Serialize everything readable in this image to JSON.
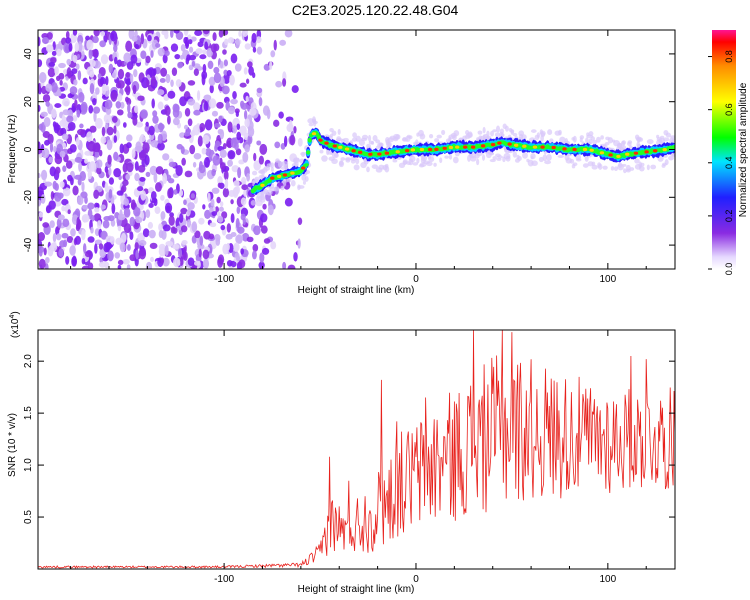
{
  "title": "C2E3.2025.120.22.48.G04",
  "chart_data": [
    {
      "type": "heatmap",
      "name": "spectrogram",
      "xlabel": "Height of straight line (km)",
      "ylabel": "Frequency (Hz)",
      "xlim": [
        -197,
        135
      ],
      "ylim": [
        -50,
        50
      ],
      "xticks": [
        -100,
        0,
        100
      ],
      "yticks": [
        -40,
        -20,
        0,
        20,
        40
      ],
      "colorbar": {
        "label": "Normalized spectral amplitude",
        "range": [
          0,
          0.9
        ],
        "ticks": [
          0.0,
          0.2,
          0.4,
          0.6,
          0.8
        ]
      },
      "noise_region": {
        "x_from": -197,
        "x_to": -60,
        "y_from": -50,
        "y_to": 50,
        "amplitude": 0.15
      },
      "ridge": {
        "x": [
          -85,
          -80,
          -75,
          -70,
          -65,
          -60,
          -57,
          -55,
          -52,
          -50,
          -45,
          -40,
          -35,
          -30,
          -25,
          -20,
          -10,
          0,
          10,
          20,
          30,
          40,
          45,
          50,
          60,
          70,
          80,
          90,
          95,
          100,
          105,
          110,
          120,
          130,
          135
        ],
        "y": [
          -17,
          -15,
          -12,
          -11,
          -10,
          -9,
          -6,
          6,
          7,
          4,
          2,
          1,
          0,
          -1,
          -2,
          -2,
          -1,
          0,
          0,
          1,
          1,
          2,
          3,
          2,
          1,
          1,
          0,
          0,
          -1,
          -2,
          -3,
          -2,
          -1,
          0,
          1
        ]
      }
    },
    {
      "type": "line",
      "name": "snr",
      "xlabel": "Height of straight line (km)",
      "ylabel": "SNR (10 * v/v)",
      "scale_label": "(x10",
      "scale_exponent": "4",
      "xlim": [
        -197,
        135
      ],
      "ylim": [
        0,
        2.3
      ],
      "xticks": [
        -100,
        0,
        100
      ],
      "yticks": [
        0.5,
        1.0,
        1.5,
        2.0
      ],
      "color": "#e8211c",
      "envelope": {
        "x": [
          -197,
          -100,
          -60,
          -50,
          -45,
          -40,
          -35,
          -30,
          -25,
          -20,
          -15,
          -10,
          0,
          10,
          20,
          30,
          40,
          50,
          60,
          70,
          80,
          90,
          100,
          110,
          120,
          135
        ],
        "mean": [
          0.02,
          0.02,
          0.04,
          0.15,
          0.45,
          0.4,
          0.35,
          0.45,
          0.5,
          0.55,
          0.65,
          0.8,
          0.9,
          1.0,
          1.1,
          1.2,
          1.3,
          1.35,
          1.35,
          1.3,
          1.3,
          1.25,
          1.25,
          1.25,
          1.25,
          1.25
        ],
        "amp": [
          0.01,
          0.01,
          0.02,
          0.1,
          0.3,
          0.25,
          0.2,
          0.3,
          0.35,
          0.4,
          0.45,
          0.5,
          0.55,
          0.6,
          0.65,
          0.7,
          0.75,
          0.75,
          0.7,
          0.65,
          0.6,
          0.55,
          0.55,
          0.5,
          0.5,
          0.5
        ]
      },
      "peaks": [
        [
          -45,
          1.08
        ],
        [
          -35,
          0.85
        ],
        [
          -18,
          1.82
        ],
        [
          -10,
          1.42
        ],
        [
          5,
          1.65
        ],
        [
          30,
          2.3
        ],
        [
          45,
          2.3
        ],
        [
          50,
          2.28
        ],
        [
          112,
          2.05
        ],
        [
          120,
          2.02
        ]
      ]
    }
  ]
}
